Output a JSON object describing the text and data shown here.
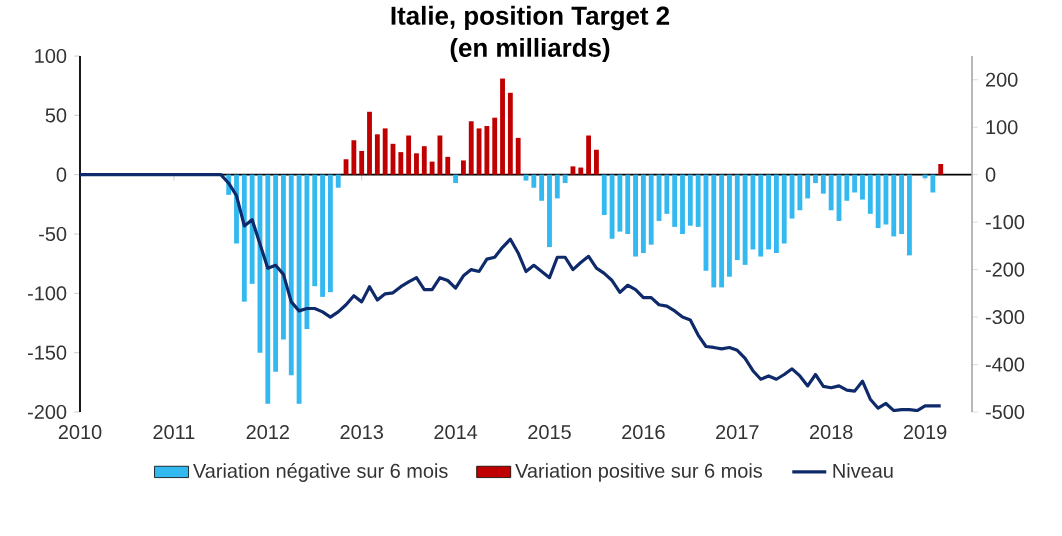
{
  "chart_data": {
    "type": "bar",
    "title": "Italie, position Target 2",
    "subtitle": "(en milliards)",
    "xlim": [
      "2010-01",
      "2019-07"
    ],
    "xticks": [
      "2010",
      "2011",
      "2012",
      "2013",
      "2014",
      "2015",
      "2016",
      "2017",
      "2018",
      "2019"
    ],
    "ylim": [
      -200,
      100
    ],
    "yticks": [
      -200,
      -150,
      -100,
      -50,
      0,
      50,
      100
    ],
    "y2lim": [
      -500,
      250
    ],
    "y2ticks": [
      -500,
      -400,
      -300,
      -200,
      -100,
      0,
      100,
      200
    ],
    "legend": "bottom",
    "series": [
      {
        "name": "Variation négative sur 6 mois",
        "color": "#33b9ef",
        "x": [
          "2011-08",
          "2011-09",
          "2011-10",
          "2011-11",
          "2011-12",
          "2012-01",
          "2012-02",
          "2012-03",
          "2012-04",
          "2012-05",
          "2012-06",
          "2012-07",
          "2012-08",
          "2012-09",
          "2012-10",
          "2014-01",
          "2014-10",
          "2014-11",
          "2014-12",
          "2015-01",
          "2015-02",
          "2015-03",
          "2015-08",
          "2015-09",
          "2015-10",
          "2015-11",
          "2015-12",
          "2016-01",
          "2016-02",
          "2016-03",
          "2016-04",
          "2016-05",
          "2016-06",
          "2016-07",
          "2016-08",
          "2016-09",
          "2016-10",
          "2016-11",
          "2016-12",
          "2017-01",
          "2017-02",
          "2017-03",
          "2017-04",
          "2017-05",
          "2017-06",
          "2017-07",
          "2017-08",
          "2017-09",
          "2017-10",
          "2017-11",
          "2017-12",
          "2018-01",
          "2018-02",
          "2018-03",
          "2018-04",
          "2018-05",
          "2018-06",
          "2018-07",
          "2018-08",
          "2018-09",
          "2018-10",
          "2018-11",
          "2019-01",
          "2019-02"
        ],
        "values": [
          -17,
          -58,
          -107,
          -92,
          -150,
          -193,
          -166,
          -139,
          -169,
          -193,
          -130,
          -94,
          -103,
          -99,
          -11,
          -7,
          -5,
          -11,
          -22,
          -61,
          -20,
          -7,
          -34,
          -54,
          -48,
          -50,
          -69,
          -66,
          -59,
          -39,
          -33,
          -44,
          -50,
          -43,
          -44,
          -81,
          -95,
          -95,
          -86,
          -72,
          -76,
          -63,
          -69,
          -63,
          -66,
          -58,
          -37,
          -30,
          -20,
          -7,
          -16,
          -30,
          -39,
          -22,
          -15,
          -21,
          -33,
          -45,
          -42,
          -52,
          -50,
          -68,
          -3,
          -15
        ]
      },
      {
        "name": "Variation positive sur 6 mois",
        "color": "#c00000",
        "x": [
          "2012-11",
          "2012-12",
          "2013-01",
          "2013-02",
          "2013-03",
          "2013-04",
          "2013-05",
          "2013-06",
          "2013-07",
          "2013-08",
          "2013-09",
          "2013-10",
          "2013-11",
          "2013-12",
          "2014-02",
          "2014-03",
          "2014-04",
          "2014-05",
          "2014-06",
          "2014-07",
          "2014-08",
          "2014-09",
          "2015-04",
          "2015-05",
          "2015-06",
          "2015-07",
          "2019-03"
        ],
        "values": [
          13,
          29,
          20,
          53,
          34,
          39,
          26,
          19,
          33,
          18,
          24,
          11,
          33,
          15,
          12,
          45,
          39,
          41,
          48,
          81,
          69,
          31,
          7,
          6,
          33,
          21,
          9
        ]
      },
      {
        "name": "Niveau",
        "type": "line",
        "axis": "y2",
        "color": "#0f2a6b",
        "x": [
          "2010-01",
          "2011-07",
          "2011-08",
          "2011-09",
          "2011-10",
          "2011-11",
          "2011-12",
          "2012-01",
          "2012-02",
          "2012-03",
          "2012-04",
          "2012-05",
          "2012-06",
          "2012-07",
          "2012-08",
          "2012-09",
          "2012-10",
          "2012-11",
          "2012-12",
          "2013-01",
          "2013-02",
          "2013-03",
          "2013-04",
          "2013-05",
          "2013-06",
          "2013-07",
          "2013-08",
          "2013-09",
          "2013-10",
          "2013-11",
          "2013-12",
          "2014-01",
          "2014-02",
          "2014-03",
          "2014-04",
          "2014-05",
          "2014-06",
          "2014-07",
          "2014-08",
          "2014-09",
          "2014-10",
          "2014-11",
          "2014-12",
          "2015-01",
          "2015-02",
          "2015-03",
          "2015-04",
          "2015-05",
          "2015-06",
          "2015-07",
          "2015-08",
          "2015-09",
          "2015-10",
          "2015-11",
          "2015-12",
          "2016-01",
          "2016-02",
          "2016-03",
          "2016-04",
          "2016-05",
          "2016-06",
          "2016-07",
          "2016-08",
          "2016-09",
          "2016-10",
          "2016-11",
          "2016-12",
          "2017-01",
          "2017-02",
          "2017-03",
          "2017-04",
          "2017-05",
          "2017-06",
          "2017-07",
          "2017-08",
          "2017-09",
          "2017-10",
          "2017-11",
          "2017-12",
          "2018-01",
          "2018-02",
          "2018-03",
          "2018-04",
          "2018-05",
          "2018-06",
          "2018-07",
          "2018-08",
          "2018-09",
          "2018-10",
          "2018-11",
          "2018-12",
          "2019-01",
          "2019-02",
          "2019-03"
        ],
        "values": [
          0,
          0,
          -18,
          -44,
          -108,
          -95,
          -146,
          -197,
          -191,
          -210,
          -268,
          -287,
          -282,
          -282,
          -289,
          -300,
          -289,
          -274,
          -255,
          -268,
          -236,
          -264,
          -251,
          -249,
          -236,
          -226,
          -217,
          -242,
          -242,
          -217,
          -223,
          -239,
          -213,
          -200,
          -204,
          -178,
          -174,
          -153,
          -136,
          -165,
          -204,
          -191,
          -204,
          -217,
          -174,
          -174,
          -200,
          -185,
          -172,
          -197,
          -208,
          -223,
          -248,
          -233,
          -242,
          -259,
          -259,
          -274,
          -277,
          -287,
          -300,
          -306,
          -338,
          -362,
          -364,
          -367,
          -364,
          -370,
          -387,
          -413,
          -431,
          -424,
          -431,
          -421,
          -409,
          -424,
          -445,
          -421,
          -446,
          -449,
          -445,
          -454,
          -456,
          -435,
          -473,
          -492,
          -482,
          -497,
          -495,
          -495,
          -497,
          -487,
          -487,
          -487
        ]
      }
    ]
  }
}
